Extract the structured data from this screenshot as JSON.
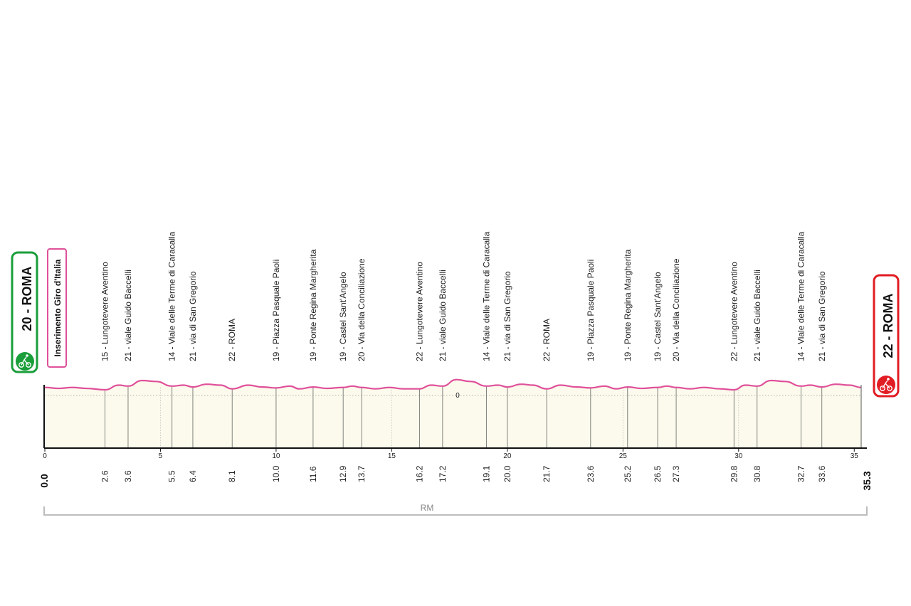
{
  "start_box": {
    "label": "20 - ROMA",
    "color": "#1a9e3a"
  },
  "finish_box": {
    "label": "22 - ROMA",
    "color": "#e21c23"
  },
  "note_box": {
    "label": "Inserimento Giro d'Italia",
    "color": "#e0509a"
  },
  "region": {
    "label": "RM"
  },
  "chart_data": {
    "type": "area",
    "title": "",
    "xlabel": "",
    "ylabel": "",
    "xlim": [
      0,
      35.3
    ],
    "x_ticks": [
      0,
      5,
      10,
      15,
      20,
      25,
      30,
      35
    ],
    "y_tick_labels": [
      "0"
    ],
    "line_color": "#e0509a",
    "fill_color": "#fbfaec",
    "profile": {
      "x": [
        0,
        0.6,
        1.2,
        1.8,
        2.6,
        3.2,
        3.6,
        4.2,
        4.8,
        5.5,
        6.0,
        6.4,
        7.0,
        7.6,
        8.1,
        8.8,
        9.4,
        10.0,
        10.6,
        11.0,
        11.6,
        12.2,
        12.9,
        13.3,
        13.7,
        14.3,
        14.9,
        15.5,
        16.2,
        16.7,
        17.2,
        17.8,
        18.4,
        19.1,
        19.6,
        20.0,
        20.6,
        21.1,
        21.7,
        22.3,
        23.0,
        23.6,
        24.2,
        24.7,
        25.2,
        25.8,
        26.5,
        26.9,
        27.3,
        27.9,
        28.5,
        29.2,
        29.8,
        30.3,
        30.8,
        31.4,
        32.0,
        32.7,
        33.1,
        33.6,
        34.2,
        34.8,
        35.3
      ],
      "y": [
        0.5,
        0.3,
        0.5,
        0.3,
        0.0,
        1.0,
        0.8,
        2.0,
        1.8,
        0.8,
        1.0,
        0.6,
        1.2,
        1.0,
        0.2,
        1.0,
        0.6,
        0.4,
        0.8,
        0.2,
        0.6,
        0.3,
        0.5,
        0.8,
        0.5,
        0.2,
        0.5,
        0.2,
        0.2,
        1.0,
        0.8,
        2.2,
        1.8,
        0.8,
        1.0,
        0.6,
        1.2,
        1.0,
        0.2,
        1.0,
        0.6,
        0.4,
        0.8,
        0.2,
        0.6,
        0.3,
        0.5,
        0.8,
        0.5,
        0.2,
        0.5,
        0.2,
        0.0,
        1.0,
        0.8,
        2.0,
        1.8,
        0.8,
        1.0,
        0.6,
        1.2,
        1.0,
        0.5
      ]
    },
    "waypoints": [
      {
        "km": "2.6",
        "label": "15 - Lungotevere Aventino"
      },
      {
        "km": "3.6",
        "label": "21 - viale Guido Baccelli"
      },
      {
        "km": "5.5",
        "label": "14 - Viale delle Terme di Caracalla"
      },
      {
        "km": "6.4",
        "label": "21 - via di San Gregorio"
      },
      {
        "km": "8.1",
        "label": "22 - ROMA"
      },
      {
        "km": "10.0",
        "label": "19 - Piazza Pasquale Paoli"
      },
      {
        "km": "11.6",
        "label": "19 - Ponte Regina Margherita"
      },
      {
        "km": "12.9",
        "label": "19 - Castel Sant'Angelo"
      },
      {
        "km": "13.7",
        "label": "20 - Via della Conciliazione"
      },
      {
        "km": "16.2",
        "label": "22 - Lungotevere Aventino"
      },
      {
        "km": "17.2",
        "label": "21 - viale Guido Baccelli"
      },
      {
        "km": "19.1",
        "label": "14 - Viale delle Terme di Caracalla"
      },
      {
        "km": "20.0",
        "label": "21 - via di San Gregorio"
      },
      {
        "km": "21.7",
        "label": "22 - ROMA"
      },
      {
        "km": "23.6",
        "label": "19 - Piazza Pasquale Paoli"
      },
      {
        "km": "25.2",
        "label": "19 - Ponte Regina Margherita"
      },
      {
        "km": "26.5",
        "label": "19 - Castel Sant'Angelo"
      },
      {
        "km": "27.3",
        "label": "20 - Via della Conciliazione"
      },
      {
        "km": "29.8",
        "label": "22 - Lungotevere Aventino"
      },
      {
        "km": "30.8",
        "label": "21 - viale Guido Baccelli"
      },
      {
        "km": "32.7",
        "label": "14 - Viale delle Terme di Caracalla"
      },
      {
        "km": "33.6",
        "label": "21 - via di San Gregorio"
      }
    ],
    "start_km": "0.0",
    "finish_km": "35.3"
  }
}
